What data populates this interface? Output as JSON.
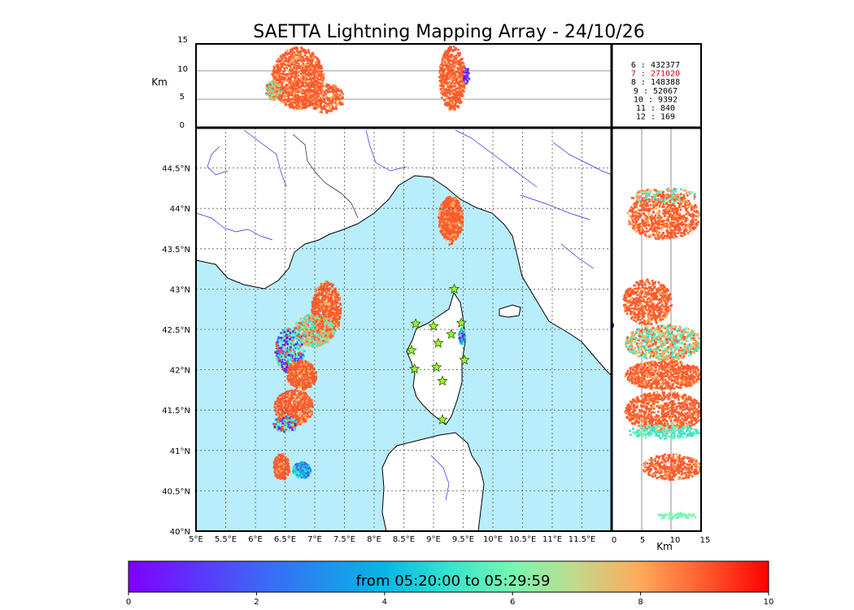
{
  "title": "SAETTA Lightning Mapping Array - 24/10/26",
  "altitude_panel": {
    "ylabel": "Km",
    "yticks": [
      "15",
      "10",
      "5",
      "0"
    ]
  },
  "side_panel": {
    "xlabel": "Km",
    "xticks": [
      "0",
      "5",
      "10",
      "15"
    ]
  },
  "map": {
    "lat_ticks": [
      "44.5°N",
      "44°N",
      "43.5°N",
      "43°N",
      "42.5°N",
      "42°N",
      "41.5°N",
      "41°N",
      "40.5°N",
      "40°N"
    ],
    "lon_ticks": [
      "5°E",
      "5.5°E",
      "6°E",
      "6.5°E",
      "7°E",
      "7.5°E",
      "8°E",
      "8.5°E",
      "9°E",
      "9.5°E",
      "10°E",
      "10.5°E",
      "11°E",
      "11.5°E"
    ],
    "lon_range": [
      5,
      12
    ],
    "lat_range": [
      40,
      45
    ],
    "colors": {
      "sea": "#b8eefb",
      "land": "#ffffff",
      "rivers": "#2a2aee",
      "station": "#9af52f"
    },
    "stations": [
      {
        "lon": 9.35,
        "lat": 43.0
      },
      {
        "lon": 8.7,
        "lat": 42.57
      },
      {
        "lon": 9.0,
        "lat": 42.54
      },
      {
        "lon": 9.47,
        "lat": 42.58
      },
      {
        "lon": 9.08,
        "lat": 42.33
      },
      {
        "lon": 9.3,
        "lat": 42.44
      },
      {
        "lon": 8.63,
        "lat": 42.24
      },
      {
        "lon": 9.52,
        "lat": 42.12
      },
      {
        "lon": 8.68,
        "lat": 42.01
      },
      {
        "lon": 9.05,
        "lat": 42.03
      },
      {
        "lon": 9.15,
        "lat": 41.86
      },
      {
        "lon": 9.15,
        "lat": 41.38
      }
    ]
  },
  "stats": [
    {
      "n": "6",
      "count": "432377",
      "color": "#000000"
    },
    {
      "n": "7",
      "count": "271020",
      "color": "#dd0000"
    },
    {
      "n": "8",
      "count": "148388",
      "color": "#000000"
    },
    {
      "n": "9",
      "count": "52067",
      "color": "#000000"
    },
    {
      "n": "10",
      "count": "9392",
      "color": "#000000"
    },
    {
      "n": "11",
      "count": "840",
      "color": "#000000"
    },
    {
      "n": "12",
      "count": "169",
      "color": "#000000"
    }
  ],
  "colorbar": {
    "label": "from 05:20:00 to 05:29:59",
    "ticks": [
      "0",
      "2",
      "4",
      "6",
      "8",
      "10"
    ],
    "range": [
      0,
      10
    ]
  }
}
